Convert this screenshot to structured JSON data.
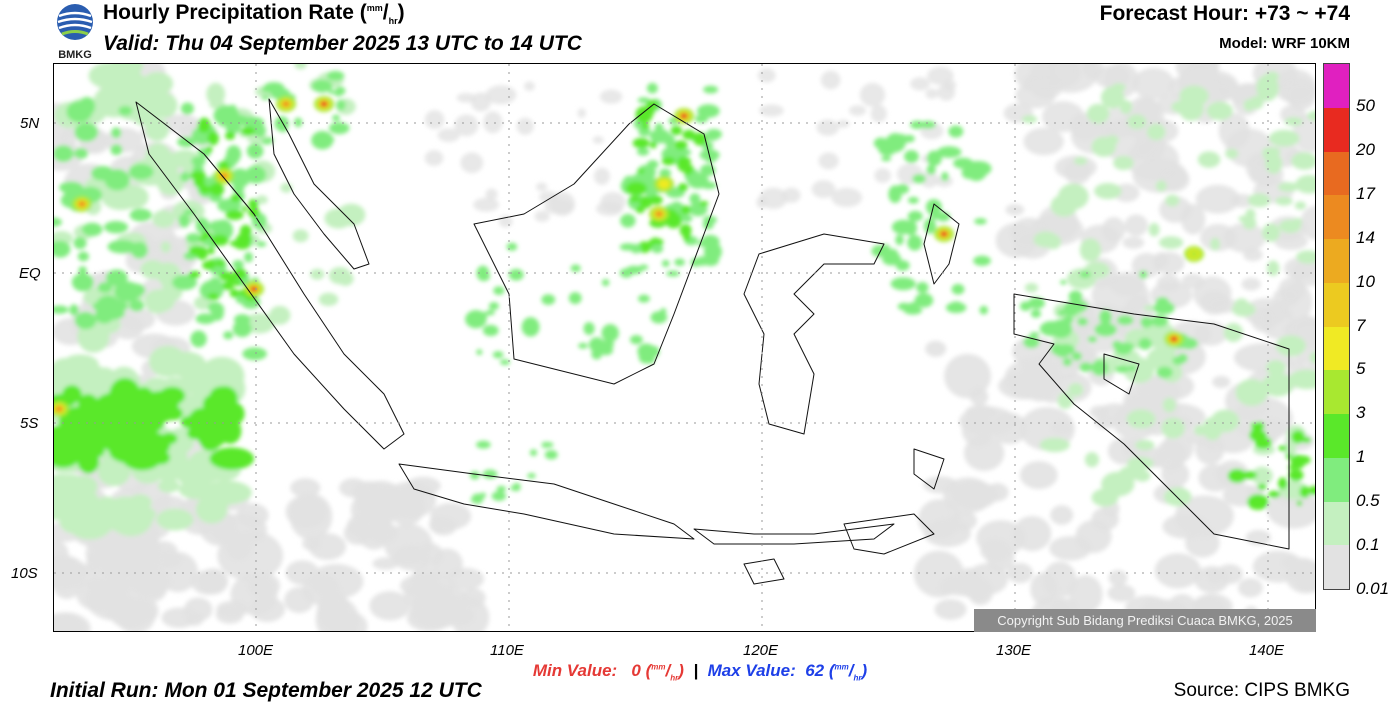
{
  "header": {
    "title": "Hourly Precipitation Rate (",
    "unit_num": "mm",
    "unit_den": "hr",
    "title_end": ")",
    "valid": "Valid: Thu 04 September 2025 13 UTC to 14 UTC",
    "forecast_hour": "Forecast Hour: +73 ~ +74",
    "model": "Model: WRF 10KM",
    "logo_text": "BMKG"
  },
  "map": {
    "lat_labels": [
      "5N",
      "EQ",
      "5S",
      "10S"
    ],
    "lon_labels": [
      "100E",
      "110E",
      "120E",
      "130E",
      "140E"
    ],
    "copyright": "Copyright Sub Bidang Prediksi Cuaca BMKG, 2025"
  },
  "colorbar": {
    "labels": [
      "50",
      "20",
      "17",
      "14",
      "10",
      "7",
      "5",
      "3",
      "1",
      "0.5",
      "0.1",
      "0.01"
    ],
    "colors": [
      "#e020c0",
      "#e82a20",
      "#e86a20",
      "#ec8a20",
      "#ecaa20",
      "#ecca20",
      "#f0ea24",
      "#a8e830",
      "#5ae82a",
      "#80ec7e",
      "#c4f0c0",
      "#e2e2e2"
    ]
  },
  "footer": {
    "min_label": "Min Value:",
    "min_value": "0",
    "separator": "|",
    "max_label": "Max Value:",
    "max_value": "62",
    "unit_num": "mm",
    "unit_den": "hr",
    "initial_run": "Initial Run: Mon 01 September 2025 12 UTC",
    "source": "Source: CIPS BMKG"
  },
  "colors": {
    "grey": "#e2e2e2",
    "light_green": "#c4f0c0",
    "green": "#80ec7e",
    "bright_green": "#5ae82a",
    "lime": "#a8e830",
    "yellow": "#f0ea24",
    "orange": "#ec8a20",
    "red": "#e82a20"
  }
}
